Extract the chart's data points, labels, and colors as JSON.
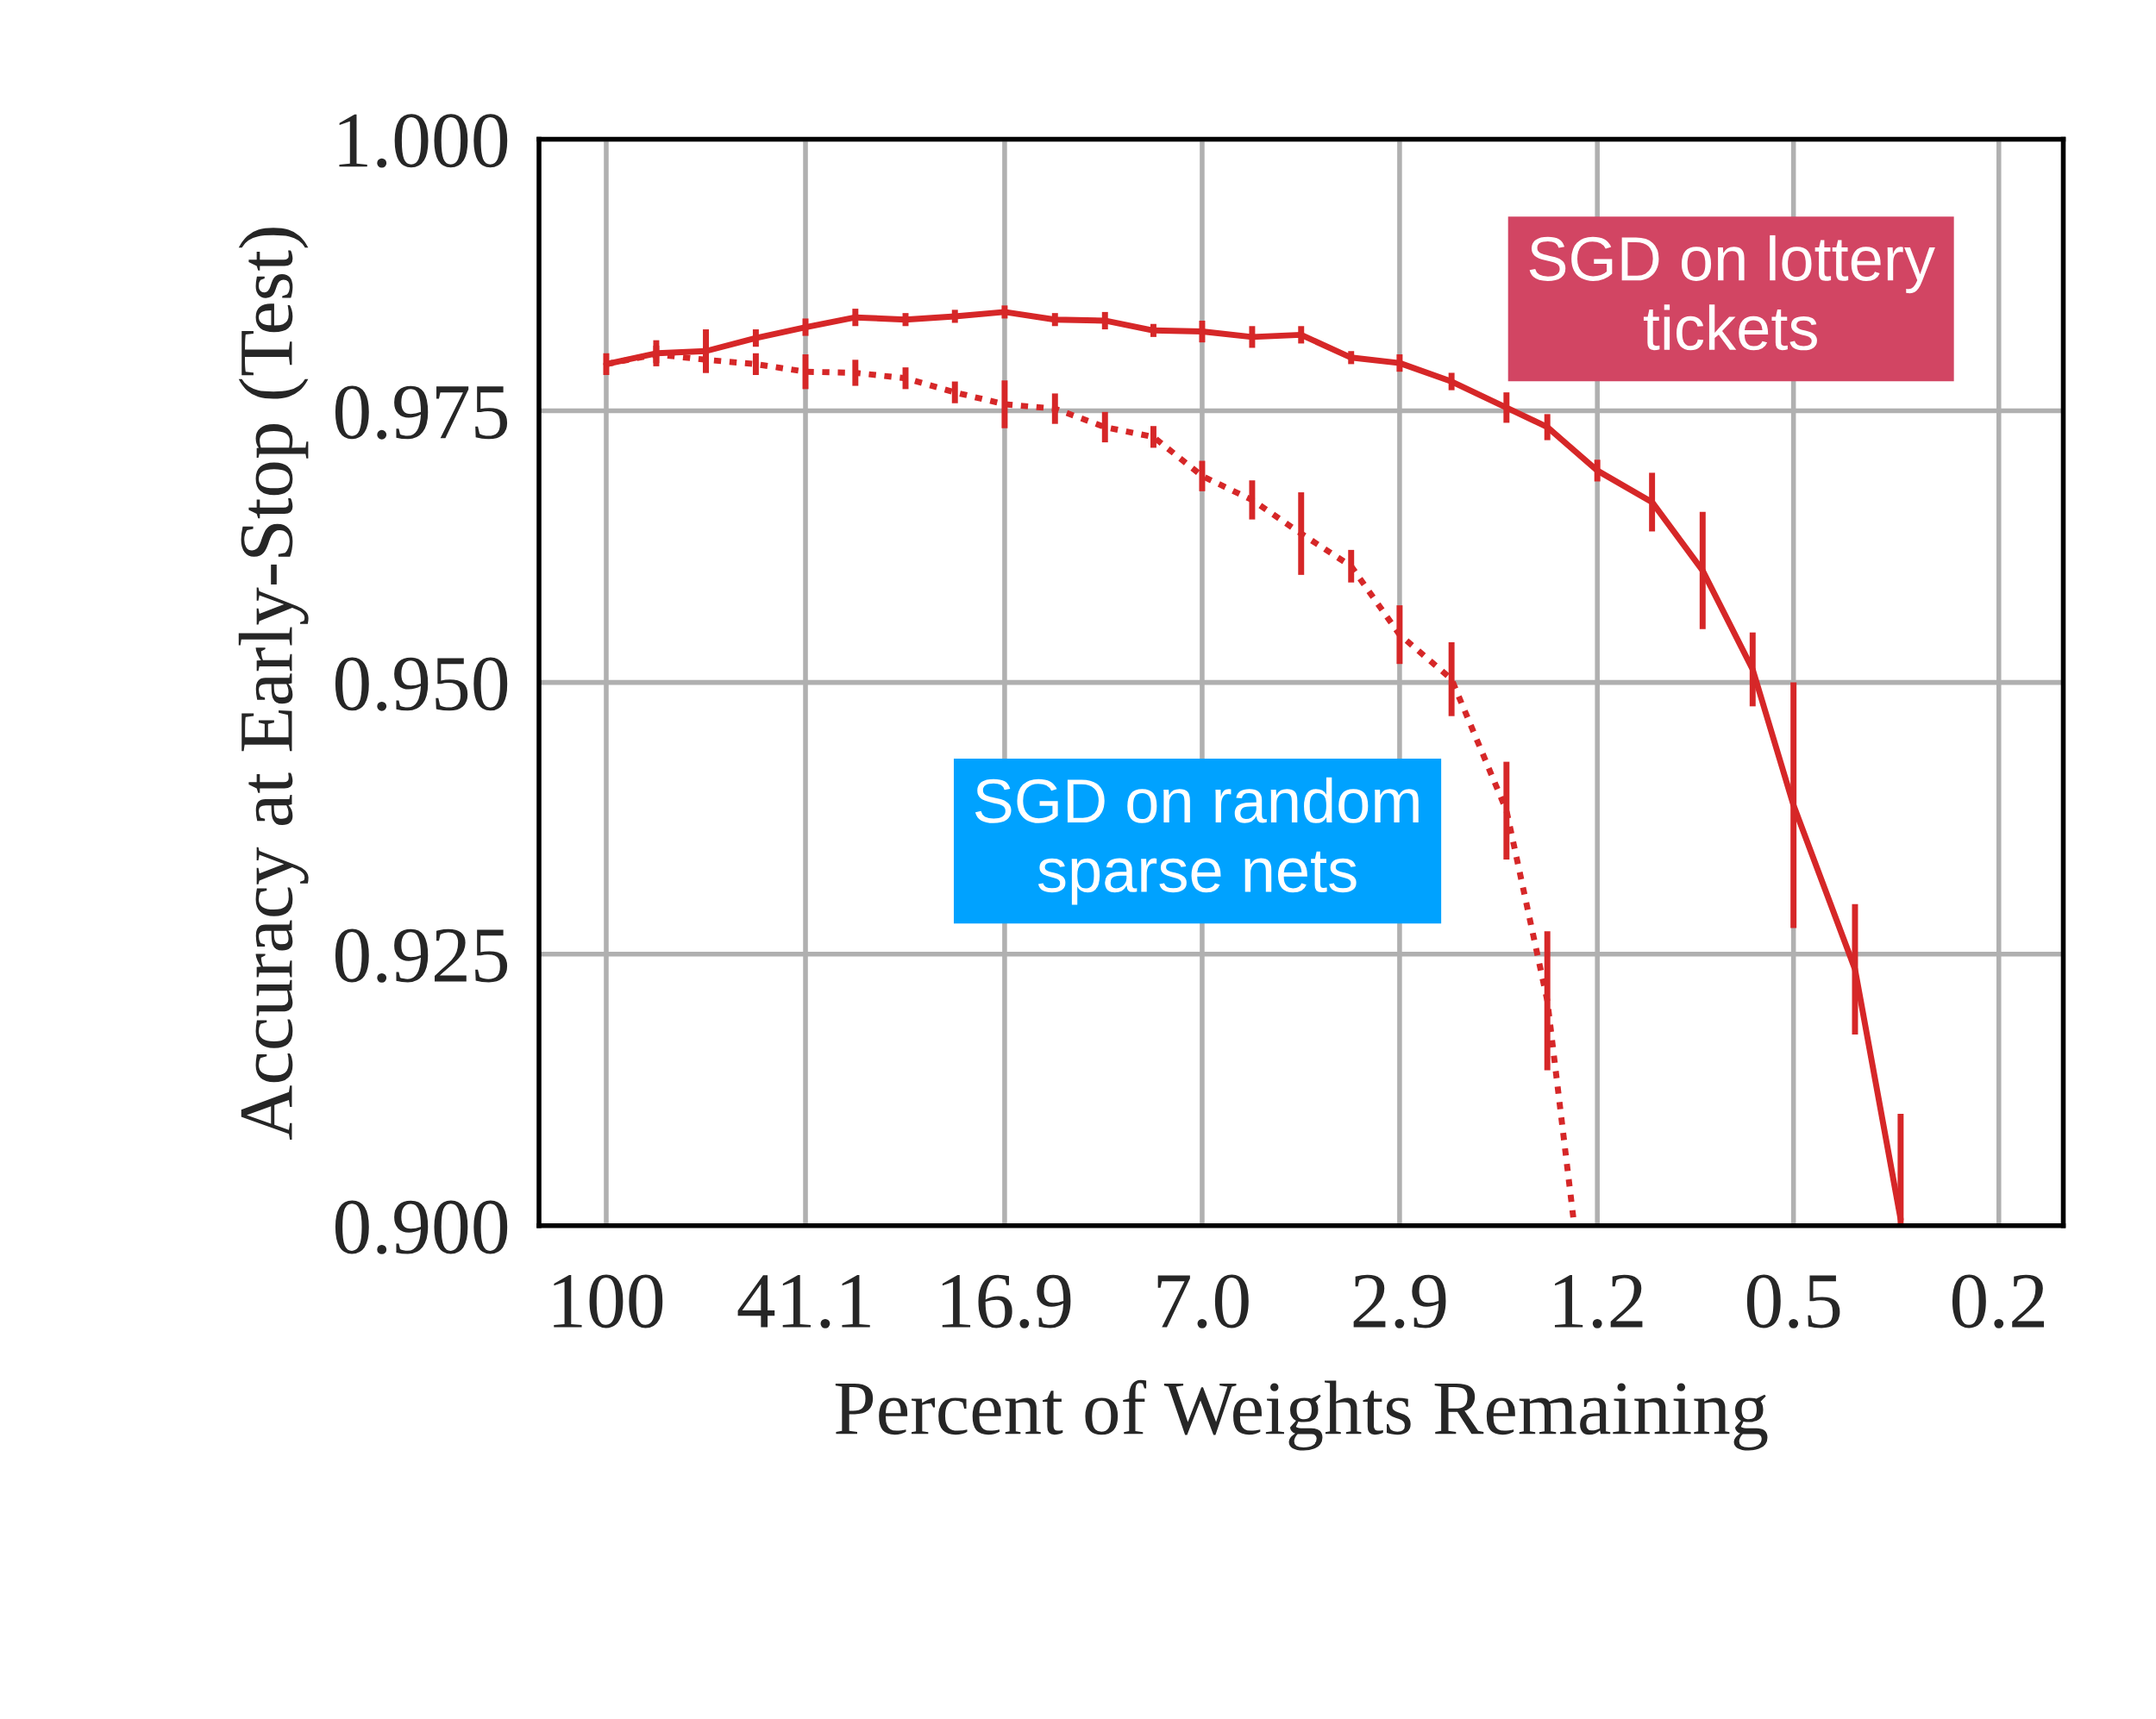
{
  "chart_data": {
    "type": "line",
    "xlabel": "Percent of Weights Remaining",
    "ylabel": "Accuracy at Early-Stop (Test)",
    "log": "x",
    "xlim": [
      135,
      0.15
    ],
    "xticks": [
      100,
      41.1,
      16.9,
      {
        "value": 7.0,
        "label": "7.0"
      },
      2.9,
      1.2,
      0.5,
      0.2
    ],
    "ylim": [
      0.9,
      1.0
    ],
    "yticks": [
      {
        "value": 0.9,
        "label": "0.900"
      },
      {
        "value": 0.925,
        "label": "0.925"
      },
      {
        "value": 0.95,
        "label": "0.950"
      },
      {
        "value": 0.975,
        "label": "0.975"
      },
      {
        "value": 1.0,
        "label": "1.000"
      }
    ],
    "grid": true,
    "legend": false,
    "marker": "none",
    "series": [
      {
        "name": "SGD on lottery\ntickets",
        "color": "#d62728",
        "line_style": "solid",
        "x": [
          100,
          80.0,
          64.1,
          51.3,
          41.1,
          32.9,
          26.3,
          21.1,
          16.9,
          13.5,
          10.8,
          8.7,
          7.0,
          5.6,
          4.5,
          3.6,
          2.9,
          2.3,
          1.8,
          1.5,
          1.2,
          0.94,
          0.75,
          0.6,
          0.5,
          0.38,
          0.31
        ],
        "values": [
          0.9793,
          0.9803,
          0.9805,
          0.9817,
          0.9827,
          0.9836,
          0.9834,
          0.9837,
          0.9841,
          0.9834,
          0.9833,
          0.9824,
          0.9823,
          0.9818,
          0.982,
          0.9799,
          0.9794,
          0.9777,
          0.9753,
          0.9735,
          0.9695,
          0.9666,
          0.9603,
          0.9512,
          0.9387,
          0.9236,
          0.9006
        ],
        "errors": [
          0.001,
          0.0012,
          0.002,
          0.0008,
          0.0008,
          0.0008,
          0.0006,
          0.0006,
          0.0006,
          0.0006,
          0.0008,
          0.0006,
          0.001,
          0.001,
          0.0008,
          0.0006,
          0.0008,
          0.0008,
          0.0014,
          0.0012,
          0.001,
          0.0027,
          0.0054,
          0.0034,
          0.0113,
          0.006,
          0.0097
        ]
      },
      {
        "name": "SGD on random\nsparse nets",
        "color": "#d62728",
        "line_style": "dotted",
        "x": [
          100,
          80.0,
          64.1,
          51.3,
          41.1,
          32.9,
          26.3,
          21.1,
          16.9,
          13.5,
          10.8,
          8.7,
          7.0,
          5.6,
          4.5,
          3.6,
          2.9,
          2.3,
          1.8,
          1.5,
          1.33
        ],
        "values": [
          0.9793,
          0.9802,
          0.9797,
          0.9793,
          0.9786,
          0.9785,
          0.978,
          0.9767,
          0.9756,
          0.9752,
          0.9735,
          0.9726,
          0.969,
          0.9668,
          0.9637,
          0.9607,
          0.9544,
          0.9503,
          0.9382,
          0.9207,
          0.9
        ],
        "errors": [
          null,
          0.0008,
          0.0012,
          0.001,
          0.0016,
          0.0012,
          0.001,
          0.001,
          0.0022,
          0.0014,
          0.0014,
          0.001,
          0.0014,
          0.0018,
          0.0038,
          0.0015,
          0.0027,
          0.0034,
          0.0045,
          0.0064,
          null
        ]
      }
    ]
  }
}
